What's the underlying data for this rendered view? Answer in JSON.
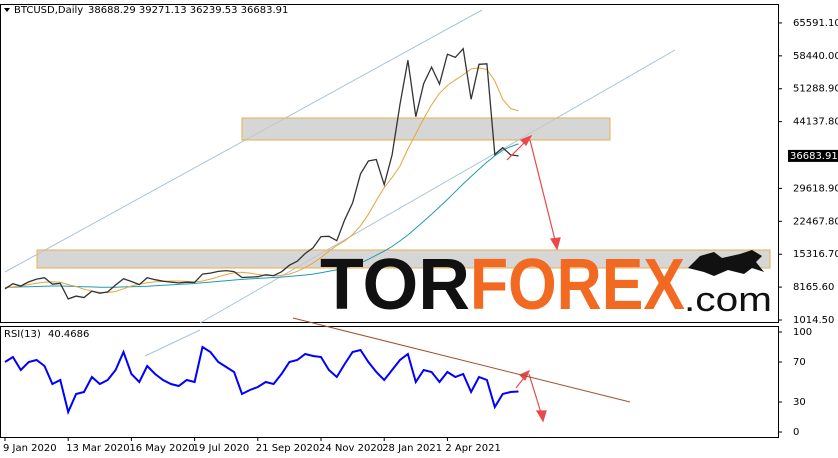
{
  "chart_data": [
    {
      "type": "line",
      "title": "BTCUSD,Daily",
      "subtitle": "38688.29 39271.13 36239.53 36683.91",
      "categories": [
        "9 Jan 2020",
        null,
        null,
        null,
        null,
        null,
        null,
        null,
        "13 Mar 2020",
        null,
        null,
        null,
        null,
        null,
        null,
        null,
        "16 May 2020",
        null,
        null,
        null,
        null,
        null,
        null,
        null,
        "19 Jul 2020",
        null,
        null,
        null,
        null,
        null,
        null,
        null,
        "21 Sep 2020",
        null,
        null,
        null,
        null,
        null,
        null,
        null,
        "24 Nov 2020",
        null,
        null,
        null,
        null,
        null,
        null,
        null,
        "28 Jan 2021",
        null,
        null,
        null,
        null,
        null,
        null,
        null,
        "2 Apr 2021",
        null,
        null,
        null,
        null,
        null,
        null,
        null,
        null,
        null
      ],
      "series": [
        {
          "color": "#333333",
          "values": [
            7800,
            8900,
            8400,
            9300,
            9900,
            10200,
            8800,
            9000,
            5600,
            6200,
            5900,
            7300,
            6850,
            7130,
            8620,
            9990,
            9380,
            8720,
            10200,
            9780,
            9450,
            9250,
            9070,
            9230,
            9170,
            11000,
            11200,
            11580,
            11760,
            11540,
            10260,
            10330,
            10420,
            10840,
            10670,
            11500,
            12930,
            13800,
            15480,
            16720,
            19150,
            19220,
            18250,
            22800,
            26470,
            32780,
            35570,
            35900,
            30430,
            36900,
            47900,
            57500,
            45200,
            52400,
            56000,
            52300,
            58800,
            58100,
            60000,
            49000,
            56600,
            56700,
            37000,
            38500,
            36900,
            36683.91
          ]
        },
        {
          "color": "#e8a33d",
          "values": [
            8000,
            8200,
            8400,
            8700,
            9000,
            9200,
            9300,
            9200,
            8700,
            8300,
            7700,
            7300,
            7000,
            7000,
            7200,
            7800,
            8400,
            8800,
            9100,
            9300,
            9400,
            9500,
            9500,
            9400,
            9300,
            9500,
            9900,
            10400,
            10900,
            11300,
            11400,
            11200,
            10900,
            10700,
            10600,
            10700,
            11000,
            11600,
            12400,
            13400,
            14600,
            16000,
            17200,
            18200,
            19600,
            21500,
            24000,
            27000,
            29800,
            32000,
            34500,
            38200,
            41500,
            44800,
            47800,
            50300,
            52000,
            53200,
            54300,
            55600,
            55800,
            55500,
            53000,
            49000,
            47000,
            46500
          ]
        },
        {
          "color": "#1f9bb5",
          "values": [
            8100,
            8150,
            8200,
            8250,
            8300,
            8350,
            8400,
            8400,
            8350,
            8300,
            8250,
            8200,
            8150,
            8150,
            8150,
            8200,
            8250,
            8300,
            8350,
            8450,
            8550,
            8650,
            8750,
            8850,
            8950,
            9100,
            9250,
            9400,
            9550,
            9700,
            9850,
            9950,
            10050,
            10150,
            10250,
            10350,
            10500,
            10650,
            10800,
            11000,
            11300,
            11600,
            11900,
            12300,
            12800,
            13400,
            14200,
            15100,
            16000,
            17000,
            18200,
            19500,
            21000,
            22500,
            24000,
            25600,
            27200,
            28900,
            30600,
            32200,
            33800,
            35300,
            36700,
            37900,
            38700,
            39300
          ]
        }
      ],
      "ylim": [
        580,
        69490
      ],
      "yticks": [
        {
          "value": 1014.5,
          "label": "1014.50"
        },
        {
          "value": 8165.6,
          "label": "8165.60"
        },
        {
          "value": 15316.7,
          "label": "15316.70"
        },
        {
          "value": 22467.8,
          "label": "22467.80"
        },
        {
          "value": 29618.9,
          "label": "29618.90"
        },
        {
          "value": 44137.8,
          "label": "44137.80"
        },
        {
          "value": 51288.9,
          "label": "51288.90"
        },
        {
          "value": 58440,
          "label": "58440.00"
        },
        {
          "value": 65591.1,
          "label": "65591.10"
        }
      ],
      "grid": false
    },
    {
      "type": "line",
      "title": "RSI(13)",
      "color": "#0000ff",
      "values": [
        70,
        75,
        62,
        70,
        72,
        66,
        48,
        52,
        20,
        38,
        40,
        55,
        48,
        52,
        62,
        80,
        58,
        50,
        66,
        58,
        52,
        48,
        46,
        52,
        50,
        85,
        80,
        70,
        65,
        60,
        38,
        42,
        45,
        50,
        48,
        58,
        70,
        72,
        78,
        76,
        75,
        62,
        55,
        68,
        80,
        82,
        70,
        60,
        52,
        62,
        72,
        78,
        50,
        62,
        60,
        50,
        60,
        55,
        58,
        40,
        55,
        52,
        25,
        38,
        40,
        40.4686
      ],
      "ylim": [
        0,
        100
      ],
      "yticks": [
        0,
        30,
        70,
        100
      ],
      "grid": false
    }
  ],
  "watermark": {
    "first": "TOR",
    "second": "FOREX",
    "suffix": ".com"
  }
}
